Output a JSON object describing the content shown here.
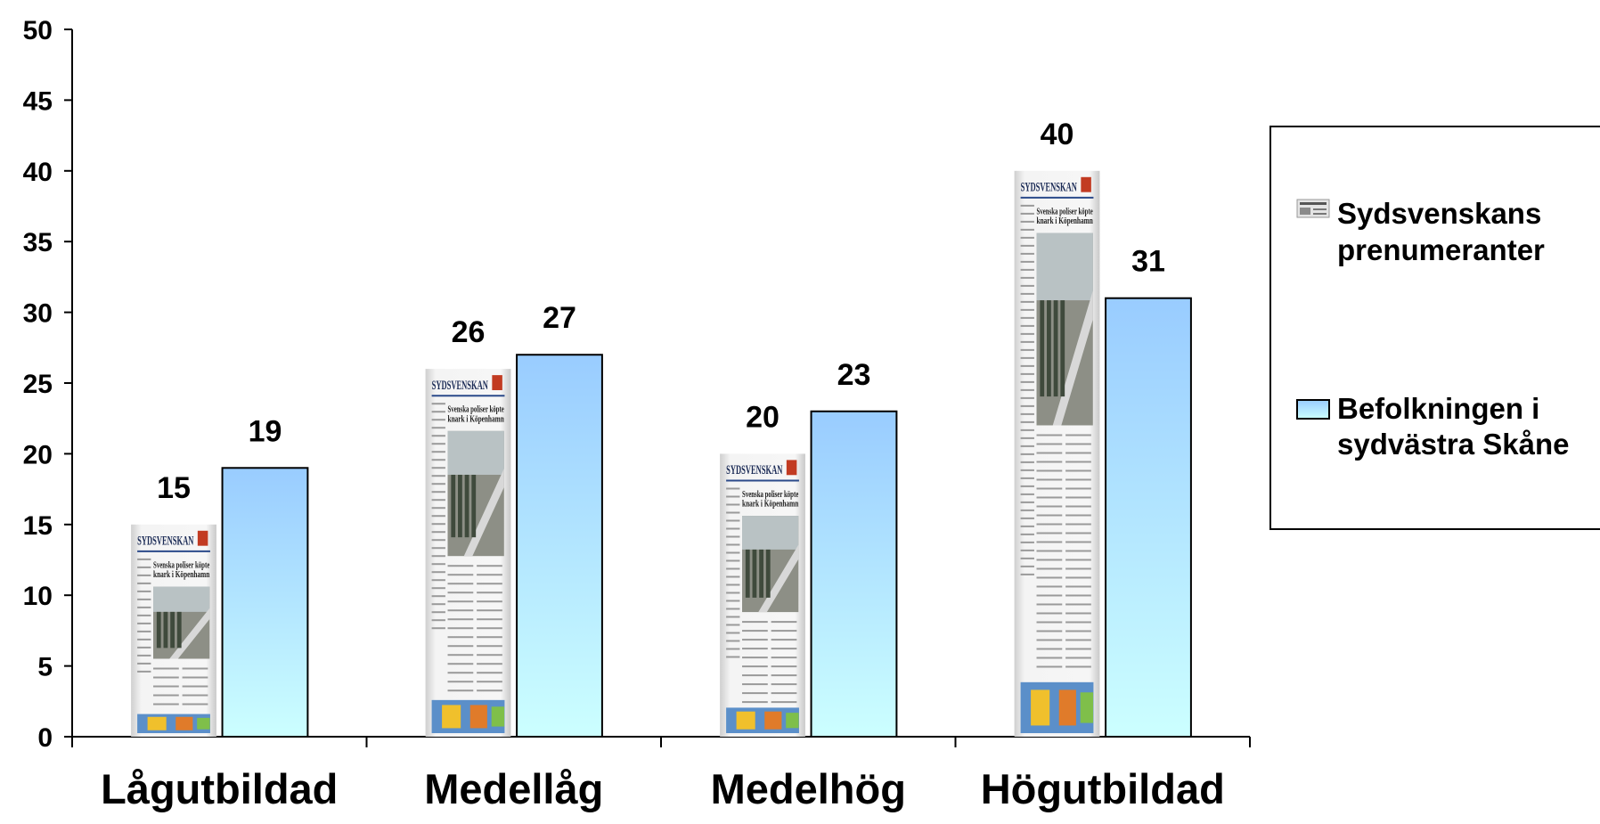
{
  "chart_data": {
    "type": "bar",
    "categories": [
      "Lågutbildad",
      "Medellåg",
      "Medelhög",
      "Högutbildad"
    ],
    "series": [
      {
        "name": "Sydsvenskans prenumeranter",
        "values": [
          15,
          26,
          20,
          40
        ],
        "fill": "newspaper-image",
        "icon": "newspaper-icon"
      },
      {
        "name": "Befolkningen i sydvästra Skåne",
        "values": [
          19,
          27,
          23,
          31
        ],
        "color_top": "#99ccff",
        "color_bottom": "#ccffff"
      }
    ],
    "ylim": [
      0,
      50
    ],
    "yticks": [
      0,
      5,
      10,
      15,
      20,
      25,
      30,
      35,
      40,
      45,
      50
    ],
    "grid": false,
    "legend": {
      "position": "right",
      "items": [
        {
          "line1": "Sydsvenskans",
          "line2": "prenumeranter"
        },
        {
          "line1": "Befolkningen i",
          "line2": "sydvästra Skåne"
        }
      ]
    },
    "newspaper_masthead": "SYDSVENSKAN",
    "newspaper_headline": [
      "Svenska poliser köpte",
      "knark i Köpenhamn"
    ]
  }
}
